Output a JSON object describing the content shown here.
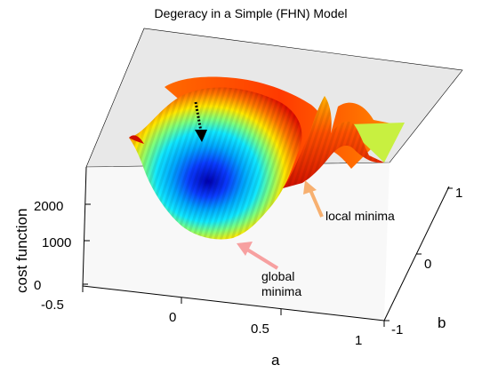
{
  "chart_data": {
    "type": "surface",
    "title": "Degeracy in a Simple (FHN) Model",
    "xlabel": "a",
    "ylabel": "b",
    "zlabel": "cost function",
    "x_ticks": [
      "-0.5",
      "0",
      "0.5",
      "1"
    ],
    "y_ticks": [
      "-1",
      "0",
      "1"
    ],
    "z_ticks": [
      "0",
      "1000",
      "2000"
    ],
    "xlim": [
      -0.5,
      1
    ],
    "ylim": [
      -1,
      1
    ],
    "zlim": [
      0,
      2600
    ],
    "colormap": "jet",
    "grid": false,
    "annotations": [
      {
        "name": "global-minima",
        "lines": [
          "global",
          "minima"
        ],
        "arrow_color": "#f7a0a0"
      },
      {
        "name": "local-minima",
        "lines": [
          "local minima"
        ],
        "arrow_color": "#f7b070"
      }
    ],
    "descent_arrow_color": "#000000"
  }
}
